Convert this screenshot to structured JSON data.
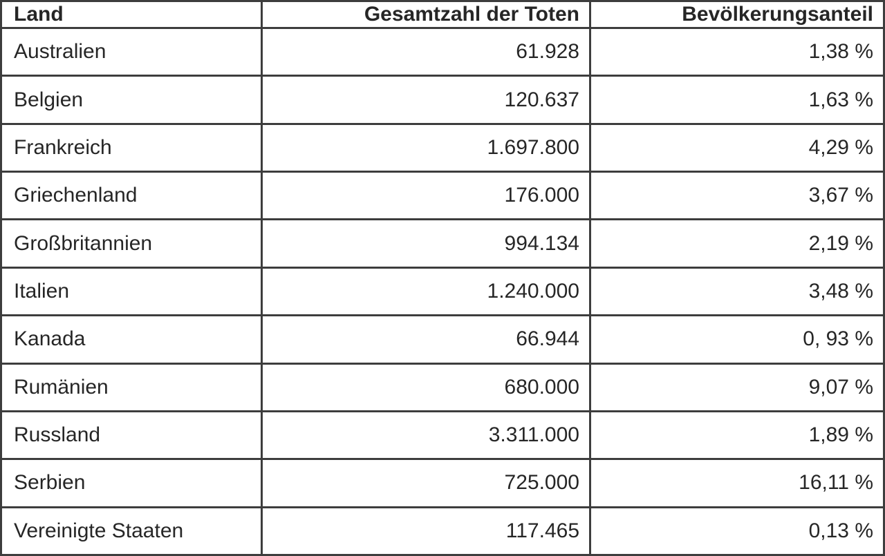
{
  "chart_data": {
    "type": "table",
    "columns": [
      "Land",
      "Gesamtzahl der Toten",
      "Bevölkerungsanteil"
    ],
    "rows": [
      [
        "Australien",
        "61.928",
        "1,38 %"
      ],
      [
        "Belgien",
        "120.637",
        "1,63 %"
      ],
      [
        "Frankreich",
        "1.697.800",
        "4,29 %"
      ],
      [
        "Griechenland",
        "176.000",
        "3,67 %"
      ],
      [
        "Großbritannien",
        "994.134",
        "2,19 %"
      ],
      [
        "Italien",
        "1.240.000",
        "3,48 %"
      ],
      [
        "Kanada",
        "66.944",
        "0, 93 %"
      ],
      [
        "Rumänien",
        "680.000",
        "9,07 %"
      ],
      [
        "Russland",
        "3.311.000",
        "1,89 %"
      ],
      [
        "Serbien",
        "725.000",
        "16,11 %"
      ],
      [
        "Vereinigte Staaten",
        "117.465",
        "0,13 %"
      ]
    ]
  },
  "colors": {
    "grid_border": "#3d3d3d",
    "cell_background": "#ffffff",
    "text": "#262626"
  }
}
